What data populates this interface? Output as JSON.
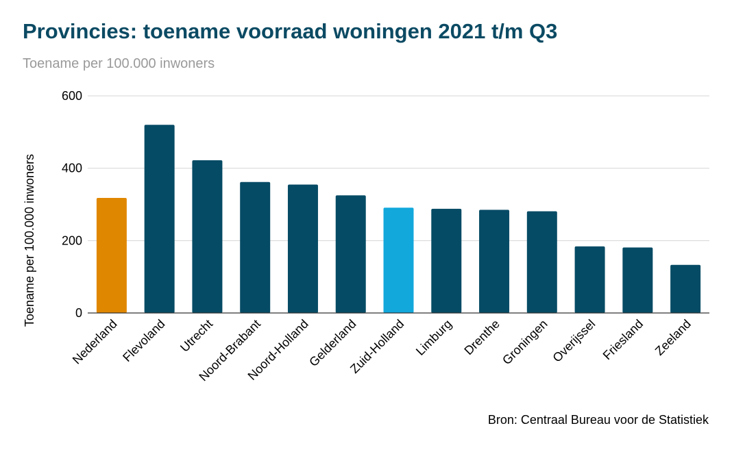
{
  "chart_data": {
    "type": "bar",
    "title": "Provincies: toename voorraad woningen 2021 t/m Q3",
    "subtitle": "Toename per 100.000 inwoners",
    "ylabel": "Toename per 100.000 inwoners",
    "xlabel": "",
    "ylim": [
      0,
      600
    ],
    "yticks": [
      0,
      200,
      400,
      600
    ],
    "grid": true,
    "categories": [
      "Nederland",
      "Flevoland",
      "Utrecht",
      "Noord-Brabant",
      "Noord-Holland",
      "Gelderland",
      "Zuid-Holland",
      "Limburg",
      "Drenthe",
      "Groningen",
      "Overijssel",
      "Friesland",
      "Zeeland"
    ],
    "values": [
      318,
      520,
      422,
      362,
      355,
      325,
      291,
      288,
      285,
      281,
      184,
      181,
      133
    ],
    "colors": [
      "#e08700",
      "#064b65",
      "#064b65",
      "#064b65",
      "#064b65",
      "#064b65",
      "#12a8dc",
      "#064b65",
      "#064b65",
      "#064b65",
      "#064b65",
      "#064b65",
      "#064b65"
    ]
  },
  "source": "Bron: Centraal Bureau voor de Statistiek"
}
